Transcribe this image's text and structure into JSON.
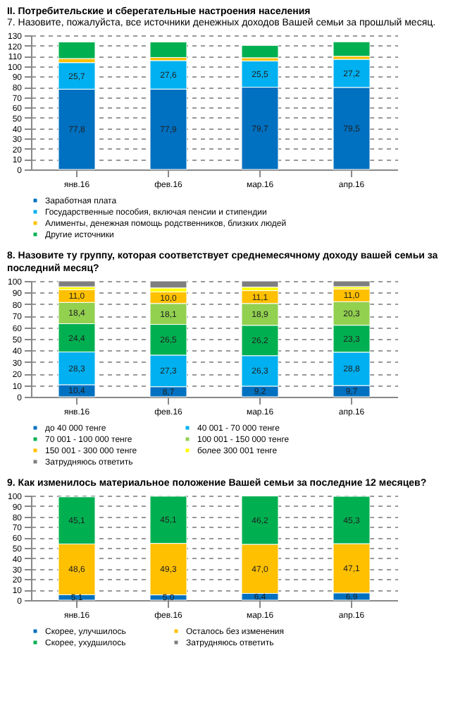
{
  "chart_data": [
    {
      "type": "bar",
      "stacked": true,
      "title": "II.      Потребительские и сберегательные настроения населения",
      "subtitle": "7. Назовите, пожалуйста, все источники денежных доходов Вашей семьи за прошлый месяц.",
      "categories": [
        "янв.16",
        "фев.16",
        "мар.16",
        "апр.16"
      ],
      "ylim": [
        0,
        130
      ],
      "yticks": [
        0,
        10,
        20,
        30,
        40,
        50,
        60,
        70,
        80,
        90,
        100,
        110,
        120,
        130
      ],
      "grid": "y",
      "legend": "bottom",
      "series": [
        {
          "name": "Заработная плата",
          "color": "#0070c0",
          "values": [
            77.8,
            77.9,
            79.7,
            79.5
          ],
          "value_labels": [
            "77,8",
            "77,9",
            "79,7",
            "79,5"
          ]
        },
        {
          "name": "Государственные пособия, включая пенсии и стипендии",
          "color": "#00b0f0",
          "values": [
            25.7,
            27.6,
            25.5,
            27.2
          ],
          "value_labels": [
            "25,7",
            "27,6",
            "25,5",
            "27,2"
          ]
        },
        {
          "name": "Алименты, денежная помощь родственников, близких людей",
          "color": "#ffc000",
          "values": [
            4,
            3,
            3,
            3
          ]
        },
        {
          "name": "Другие источники",
          "color": "#00b050",
          "values": [
            16,
            15,
            12,
            14
          ]
        }
      ]
    },
    {
      "type": "bar",
      "stacked": true,
      "title": "8. Назовите ту группу, которая соответствует среднемесячному доходу вашей семьи за последний месяц?",
      "categories": [
        "янв.16",
        "фев.16",
        "мар.16",
        "апр.16"
      ],
      "ylim": [
        0,
        100
      ],
      "yticks": [
        0,
        10,
        20,
        30,
        40,
        50,
        60,
        70,
        80,
        90,
        100
      ],
      "grid": "y",
      "legend": "bottom",
      "series": [
        {
          "name": "до 40 000 тенге",
          "color": "#0070c0",
          "values": [
            10.4,
            8.7,
            9.2,
            9.7
          ],
          "value_labels": [
            "10,4",
            "8,7",
            "9,2",
            "9,7"
          ]
        },
        {
          "name": "40 001 - 70 000 тенге",
          "color": "#00b0f0",
          "values": [
            28.3,
            27.3,
            26.3,
            28.8
          ],
          "value_labels": [
            "28,3",
            "27,3",
            "26,3",
            "28,8"
          ]
        },
        {
          "name": "70 001 - 100 000 тенге",
          "color": "#00b050",
          "values": [
            24.4,
            26.5,
            26.2,
            23.3
          ],
          "value_labels": [
            "24,4",
            "26,5",
            "26,2",
            "23,3"
          ]
        },
        {
          "name": "100 001 - 150 000 тенге",
          "color": "#92d050",
          "values": [
            18.4,
            18.1,
            18.9,
            20.3
          ],
          "value_labels": [
            "18,4",
            "18,1",
            "18,9",
            "20,3"
          ]
        },
        {
          "name": "150 001 - 300 000 тенге",
          "color": "#ffc000",
          "values": [
            11.0,
            10.0,
            11.1,
            11.0
          ],
          "value_labels": [
            "11,0",
            "10,0",
            "11,1",
            "11,0"
          ]
        },
        {
          "name": "более 300 001 тенге",
          "color": "#ffff00",
          "values": [
            2.5,
            3.4,
            3,
            2
          ]
        },
        {
          "name": "Затрудняюсь ответить",
          "color": "#7f7f7f",
          "values": [
            5,
            6,
            5.3,
            4.9
          ]
        }
      ]
    },
    {
      "type": "bar",
      "stacked": true,
      "title": "9. Как изменилось материальное положение Вашей семьи за последние 12 месяцев?",
      "categories": [
        "янв.16",
        "фев.16",
        "мар.16",
        "апр.16"
      ],
      "ylim": [
        0,
        100
      ],
      "yticks": [
        0,
        10,
        20,
        30,
        40,
        50,
        60,
        70,
        80,
        90,
        100
      ],
      "grid": "y",
      "legend": "bottom",
      "series": [
        {
          "name": "Скорее, улучшилось",
          "color": "#0070c0",
          "values": [
            5.1,
            5.0,
            6.4,
            6.9
          ],
          "value_labels": [
            "5,1",
            "5,0",
            "6,4",
            "6,9"
          ]
        },
        {
          "name": "Осталось без изменения",
          "color": "#ffc000",
          "values": [
            48.6,
            49.3,
            47.0,
            47.1
          ],
          "value_labels": [
            "48,6",
            "49,3",
            "47,0",
            "47,1"
          ]
        },
        {
          "name": "Скорее, ухудшилось",
          "color": "#00b050",
          "values": [
            45.1,
            45.1,
            46.2,
            45.3
          ],
          "value_labels": [
            "45,1",
            "45,1",
            "46,2",
            "45,3"
          ]
        },
        {
          "name": "Затрудняюсь ответить",
          "color": "#7f7f7f",
          "values": [
            null,
            null,
            null,
            null
          ]
        }
      ]
    }
  ]
}
